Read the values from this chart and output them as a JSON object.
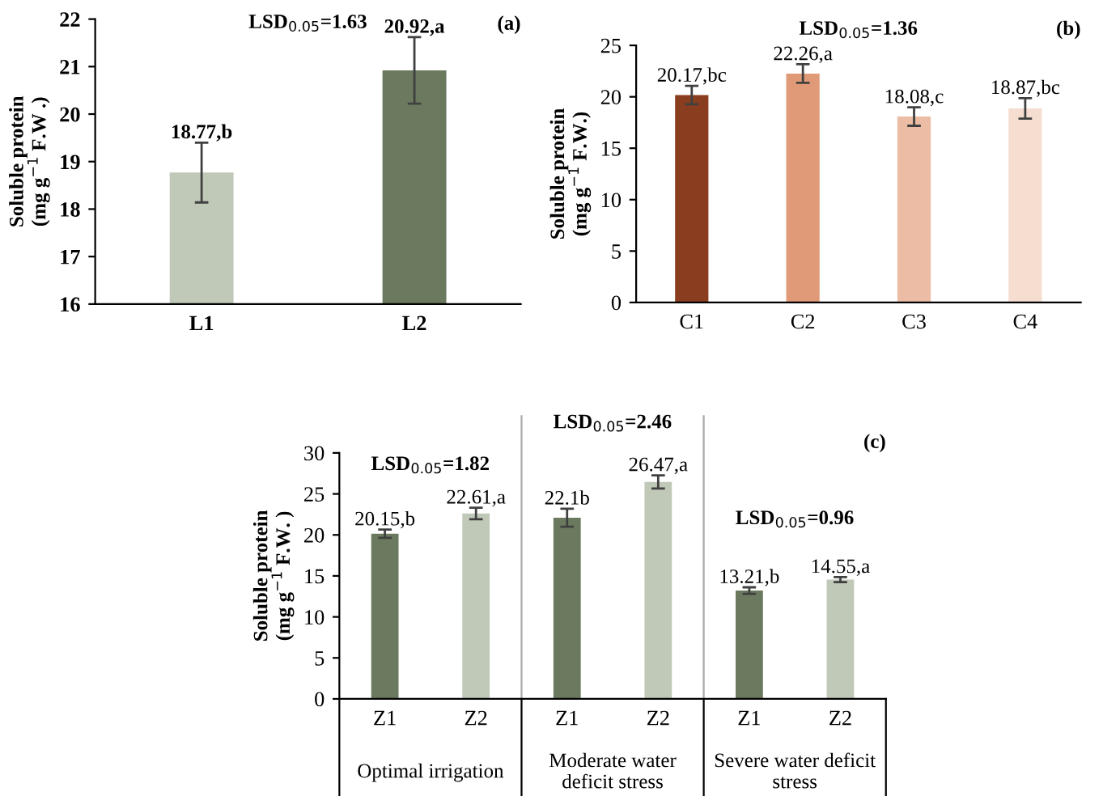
{
  "chart_data": [
    {
      "type": "bar",
      "categories": [
        "L1",
        "L2"
      ],
      "values": [
        18.77,
        20.92
      ],
      "colors": [
        "#c0c8b8",
        "#6b7a5e"
      ],
      "errors": [
        0.63,
        0.7
      ],
      "value_labels": [
        "18.77,b",
        "20.92,a"
      ],
      "ylabel": "Soluble protein\n(mg g$^{−1}$ F.W .)",
      "ylim": [
        16,
        22
      ],
      "yticks": [
        16,
        17,
        18,
        19,
        20,
        21,
        22
      ],
      "annotations": [
        "(a)",
        "LSD$_{0.05}$=1.63"
      ],
      "grid": false
    },
    {
      "type": "bar",
      "categories": [
        "C1",
        "C2",
        "C3",
        "C4"
      ],
      "values": [
        20.17,
        22.26,
        18.08,
        18.87
      ],
      "colors": [
        "#8b3e1f",
        "#e09a78",
        "#ecbca4",
        "#f5ddd0"
      ],
      "errors": [
        0.9,
        0.9,
        0.9,
        1.0
      ],
      "value_labels": [
        "20.17,bc",
        "22.26,a",
        "18.08,c",
        "18.87,bc"
      ],
      "ylabel": "Soluble protein\n(mg g$^{−1}$ F.W.)",
      "ylim": [
        0,
        25
      ],
      "yticks": [
        0,
        5,
        10,
        15,
        20,
        25
      ],
      "annotations": [
        "(b)",
        "LSD$_{0.05}$=1.36"
      ],
      "grid": false
    },
    {
      "type": "bar",
      "categories": [
        "Z1",
        "Z2",
        "Z1",
        "Z2",
        "Z1",
        "Z2"
      ],
      "values": [
        20.15,
        22.61,
        22.1,
        26.47,
        13.21,
        14.55
      ],
      "colors": [
        "#6b7a5e",
        "#c0c8b8",
        "#6b7a5e",
        "#c0c8b8",
        "#6b7a5e",
        "#c0c8b8"
      ],
      "errors": [
        0.5,
        0.7,
        1.1,
        0.8,
        0.4,
        0.3
      ],
      "value_labels": [
        "20.15,b",
        "22.61,a",
        "22.1b",
        "26.47,a",
        "13.21,b",
        "14.55,a"
      ],
      "ylabel": "Soluble protein\n(mg g$^{−1}$ F.W. )",
      "ylim": [
        0,
        30
      ],
      "yticks": [
        0,
        5,
        10,
        15,
        20,
        25,
        30
      ],
      "annotations": [
        "(c)",
        "LSD$_{0.05}$=1.82",
        "LSD$_{0.05}$=2.46",
        "LSD$_{0.05}$=0.96",
        "Optimal irrigation",
        "Moderate water\ndeficit stress",
        "Severe water deficit\nstress"
      ],
      "grid": false
    }
  ]
}
